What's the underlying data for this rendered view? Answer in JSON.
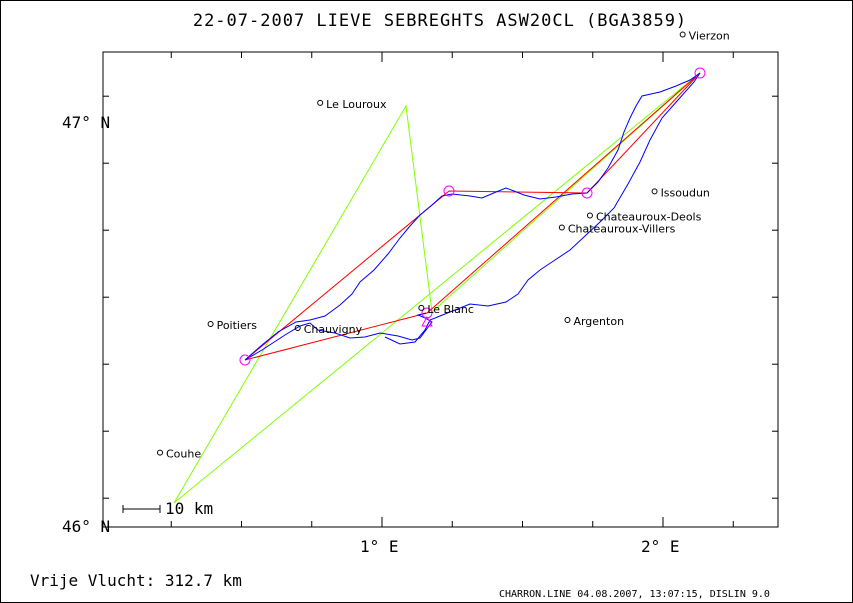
{
  "title": "22-07-2007   LIEVE SEBREGHTS   ASW20CL (BGA3859)",
  "axes": {
    "y_labels": [
      {
        "text": "47° N",
        "value": 47.0
      },
      {
        "text": "46° N",
        "value": 46.0
      }
    ],
    "x_labels": [
      {
        "text": "1° E",
        "value": 1.0
      },
      {
        "text": "2° E",
        "value": 2.0
      }
    ]
  },
  "scale_bar": "10 km",
  "towns": [
    {
      "name": "Le Louroux",
      "lon": 0.78,
      "lat": 47.05
    },
    {
      "name": "Vierzon",
      "lon": 2.07,
      "lat": 47.22
    },
    {
      "name": "Issoudun",
      "lon": 1.97,
      "lat": 46.83
    },
    {
      "name": "Chateauroux-Deols",
      "lon": 1.74,
      "lat": 46.77
    },
    {
      "name": "Chateauroux-Villers",
      "lon": 1.64,
      "lat": 46.74
    },
    {
      "name": "Poitiers",
      "lon": 0.39,
      "lat": 46.5
    },
    {
      "name": "Chauvigny",
      "lon": 0.7,
      "lat": 46.49
    },
    {
      "name": "Le Blanc",
      "lon": 1.14,
      "lat": 46.54
    },
    {
      "name": "Argenton",
      "lon": 1.66,
      "lat": 46.51
    },
    {
      "name": "Couhe",
      "lon": 0.21,
      "lat": 46.18
    }
  ],
  "footer": {
    "distance": "Vrije Vlucht:  312.7 km",
    "credit": "CHARRON.LINE 04.08.2007, 13:07:15, DISLIN 9.0"
  },
  "colors": {
    "track": "#0000ff",
    "task": "#ff0000",
    "optimised": "#80ff00",
    "turnpoint": "#ff00ff"
  }
}
